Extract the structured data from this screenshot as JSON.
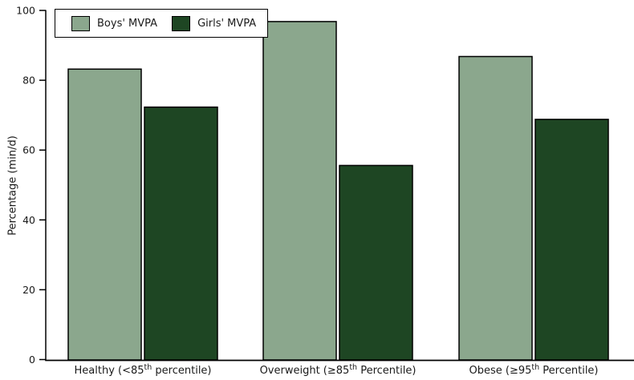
{
  "chart_data": {
    "type": "bar",
    "title": "",
    "xlabel": "",
    "ylabel": "Percentage (min/d)",
    "ylim": [
      0,
      100
    ],
    "yticks": [
      0,
      20,
      40,
      60,
      80,
      100
    ],
    "grid": false,
    "legend_position": "top-left-inside",
    "categories": [
      "Healthy (<85th percentile)",
      "Overweight (≥85th Percentile)",
      "Obese (≥95th Percentile)"
    ],
    "categories_rich": [
      {
        "prefix": "Healthy (<85",
        "sup": "th",
        "suffix": " percentile)"
      },
      {
        "prefix": "Overweight (≥85",
        "sup": "th",
        "suffix": " Percentile)"
      },
      {
        "prefix": "Obese (≥95",
        "sup": "th",
        "suffix": " Percentile)"
      }
    ],
    "series": [
      {
        "name": "Boys' MVPA",
        "color": "#8BA78D",
        "values": [
          83.2,
          96.8,
          86.8
        ]
      },
      {
        "name": "Girls' MVPA",
        "color": "#1E4623",
        "values": [
          72.3,
          55.6,
          68.8
        ]
      }
    ],
    "bar_border_color": "#000000",
    "axis_color": "#000000",
    "text_color": "#1A1A1A"
  }
}
